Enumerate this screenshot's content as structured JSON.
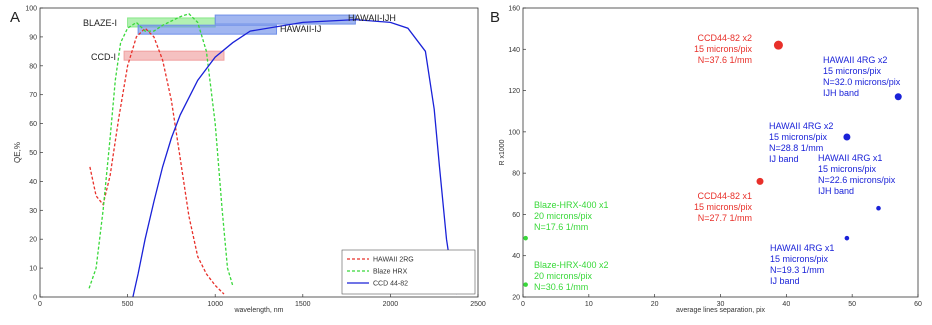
{
  "chart_data": [
    {
      "panel_letter": "A",
      "type": "line",
      "xlabel": "wavelength, nm",
      "ylabel": "QE,%",
      "xlim": [
        0,
        2500
      ],
      "ylim": [
        0,
        100
      ],
      "xticks": [
        "0",
        "500",
        "1000",
        "1500",
        "2000",
        "2500"
      ],
      "yticks": [
        "0",
        "10",
        "20",
        "30",
        "40",
        "50",
        "60",
        "70",
        "80",
        "90",
        "100"
      ],
      "grid": false,
      "legend_position": "bottom-right",
      "series": [
        {
          "name": "HAWAII 2RG",
          "color": "#e8302a",
          "dash": "dashed",
          "x": [
            285,
            320,
            360,
            400,
            450,
            500,
            550,
            600,
            650,
            700,
            750,
            800,
            850,
            900,
            950,
            1000,
            1050
          ],
          "y": [
            45,
            35,
            32,
            42,
            62,
            80,
            90,
            93,
            90,
            82,
            68,
            48,
            28,
            14,
            8,
            4,
            1
          ]
        },
        {
          "name": "Blaze HRX",
          "color": "#39d83a",
          "dash": "dashed",
          "x": [
            280,
            320,
            360,
            400,
            430,
            460,
            500,
            550,
            600,
            650,
            700,
            800,
            850,
            900,
            950,
            1000,
            1040,
            1070,
            1100
          ],
          "y": [
            3,
            10,
            30,
            55,
            75,
            88,
            93,
            95,
            92,
            92,
            94,
            97,
            98,
            95,
            85,
            60,
            30,
            10,
            4
          ]
        },
        {
          "name": "CCD 44-82",
          "color": "#1a22d8",
          "dash": "solid",
          "x": [
            530,
            560,
            600,
            650,
            700,
            750,
            800,
            900,
            1000,
            1100,
            1200,
            1500,
            1800,
            2000,
            2100,
            2200,
            2250,
            2280,
            2320,
            2350,
            2380
          ],
          "y": [
            0,
            8,
            20,
            33,
            45,
            55,
            63,
            75,
            83,
            88,
            92,
            95,
            96,
            95,
            93,
            85,
            65,
            45,
            20,
            8,
            1
          ]
        }
      ],
      "annotations": [
        {
          "text": "BLAZE-I",
          "color": "#88e888",
          "x_from": 500,
          "x_to": 1000,
          "y": 95
        },
        {
          "text": "HAWAII-IJH",
          "color": "#6f8fe8",
          "x_from": 1000,
          "x_to": 1800,
          "y": 96
        },
        {
          "text": "HAWAII-IJ",
          "color": "#6f8fe8",
          "x_from": 560,
          "x_to": 1350,
          "y": 92.5
        },
        {
          "text": "CCD-I",
          "color": "#f0a0a0",
          "x_from": 480,
          "x_to": 1050,
          "y": 83.5
        }
      ]
    },
    {
      "panel_letter": "B",
      "type": "scatter",
      "xlabel": "average lines separation, pix",
      "ylabel": "R x1000",
      "xlim": [
        0,
        60
      ],
      "ylim": [
        20,
        160
      ],
      "xticks": [
        "0",
        "10",
        "20",
        "30",
        "40",
        "50",
        "60"
      ],
      "yticks": [
        "20",
        "40",
        "60",
        "80",
        "100",
        "120",
        "140",
        "160"
      ],
      "grid": false,
      "points": [
        {
          "x": 38.8,
          "y": 142.0,
          "color": "#e8302a",
          "size": "large",
          "label": [
            "CCD44-82 x2",
            "15 microns/pix",
            "N=37.6 1/mm"
          ]
        },
        {
          "x": 57.0,
          "y": 117.0,
          "color": "#1a22d8",
          "size": "medium",
          "label": [
            "HAWAII 4RG x2",
            "15 microns/pix",
            "N=32.0 microns/pix",
            "IJH band"
          ]
        },
        {
          "x": 49.2,
          "y": 97.5,
          "color": "#1a22d8",
          "size": "medium",
          "label": [
            "HAWAII 4RG x2",
            "15 microns/pix",
            "N=28.8 1/mm",
            "IJ band"
          ]
        },
        {
          "x": 36.0,
          "y": 76.0,
          "color": "#e8302a",
          "size": "medium",
          "label": [
            "CCD44-82 x1",
            "15 microns/pix",
            "N=27.7 1/mm"
          ]
        },
        {
          "x": 54.0,
          "y": 63.0,
          "color": "#1a22d8",
          "size": "small",
          "label": [
            "HAWAII 4RG x1",
            "15 microns/pix",
            "N=22.6 microns/pix",
            "IJH band"
          ]
        },
        {
          "x": 49.2,
          "y": 48.5,
          "color": "#1a22d8",
          "size": "small",
          "label": [
            "HAWAII 4RG x1",
            "15 microns/pix",
            "N=19.3 1/mm",
            "IJ band"
          ]
        },
        {
          "x": 0.4,
          "y": 48.5,
          "color": "#39d83a",
          "size": "small",
          "label": [
            "Blaze-HRX-400 x1",
            "20 microns/pix",
            "N=17.6 1/mm"
          ]
        },
        {
          "x": 0.4,
          "y": 26.0,
          "color": "#39d83a",
          "size": "small",
          "label": [
            "Blaze-HRX-400 x2",
            "20 microns/pix",
            "N=30.6 1/mm"
          ]
        }
      ]
    }
  ]
}
